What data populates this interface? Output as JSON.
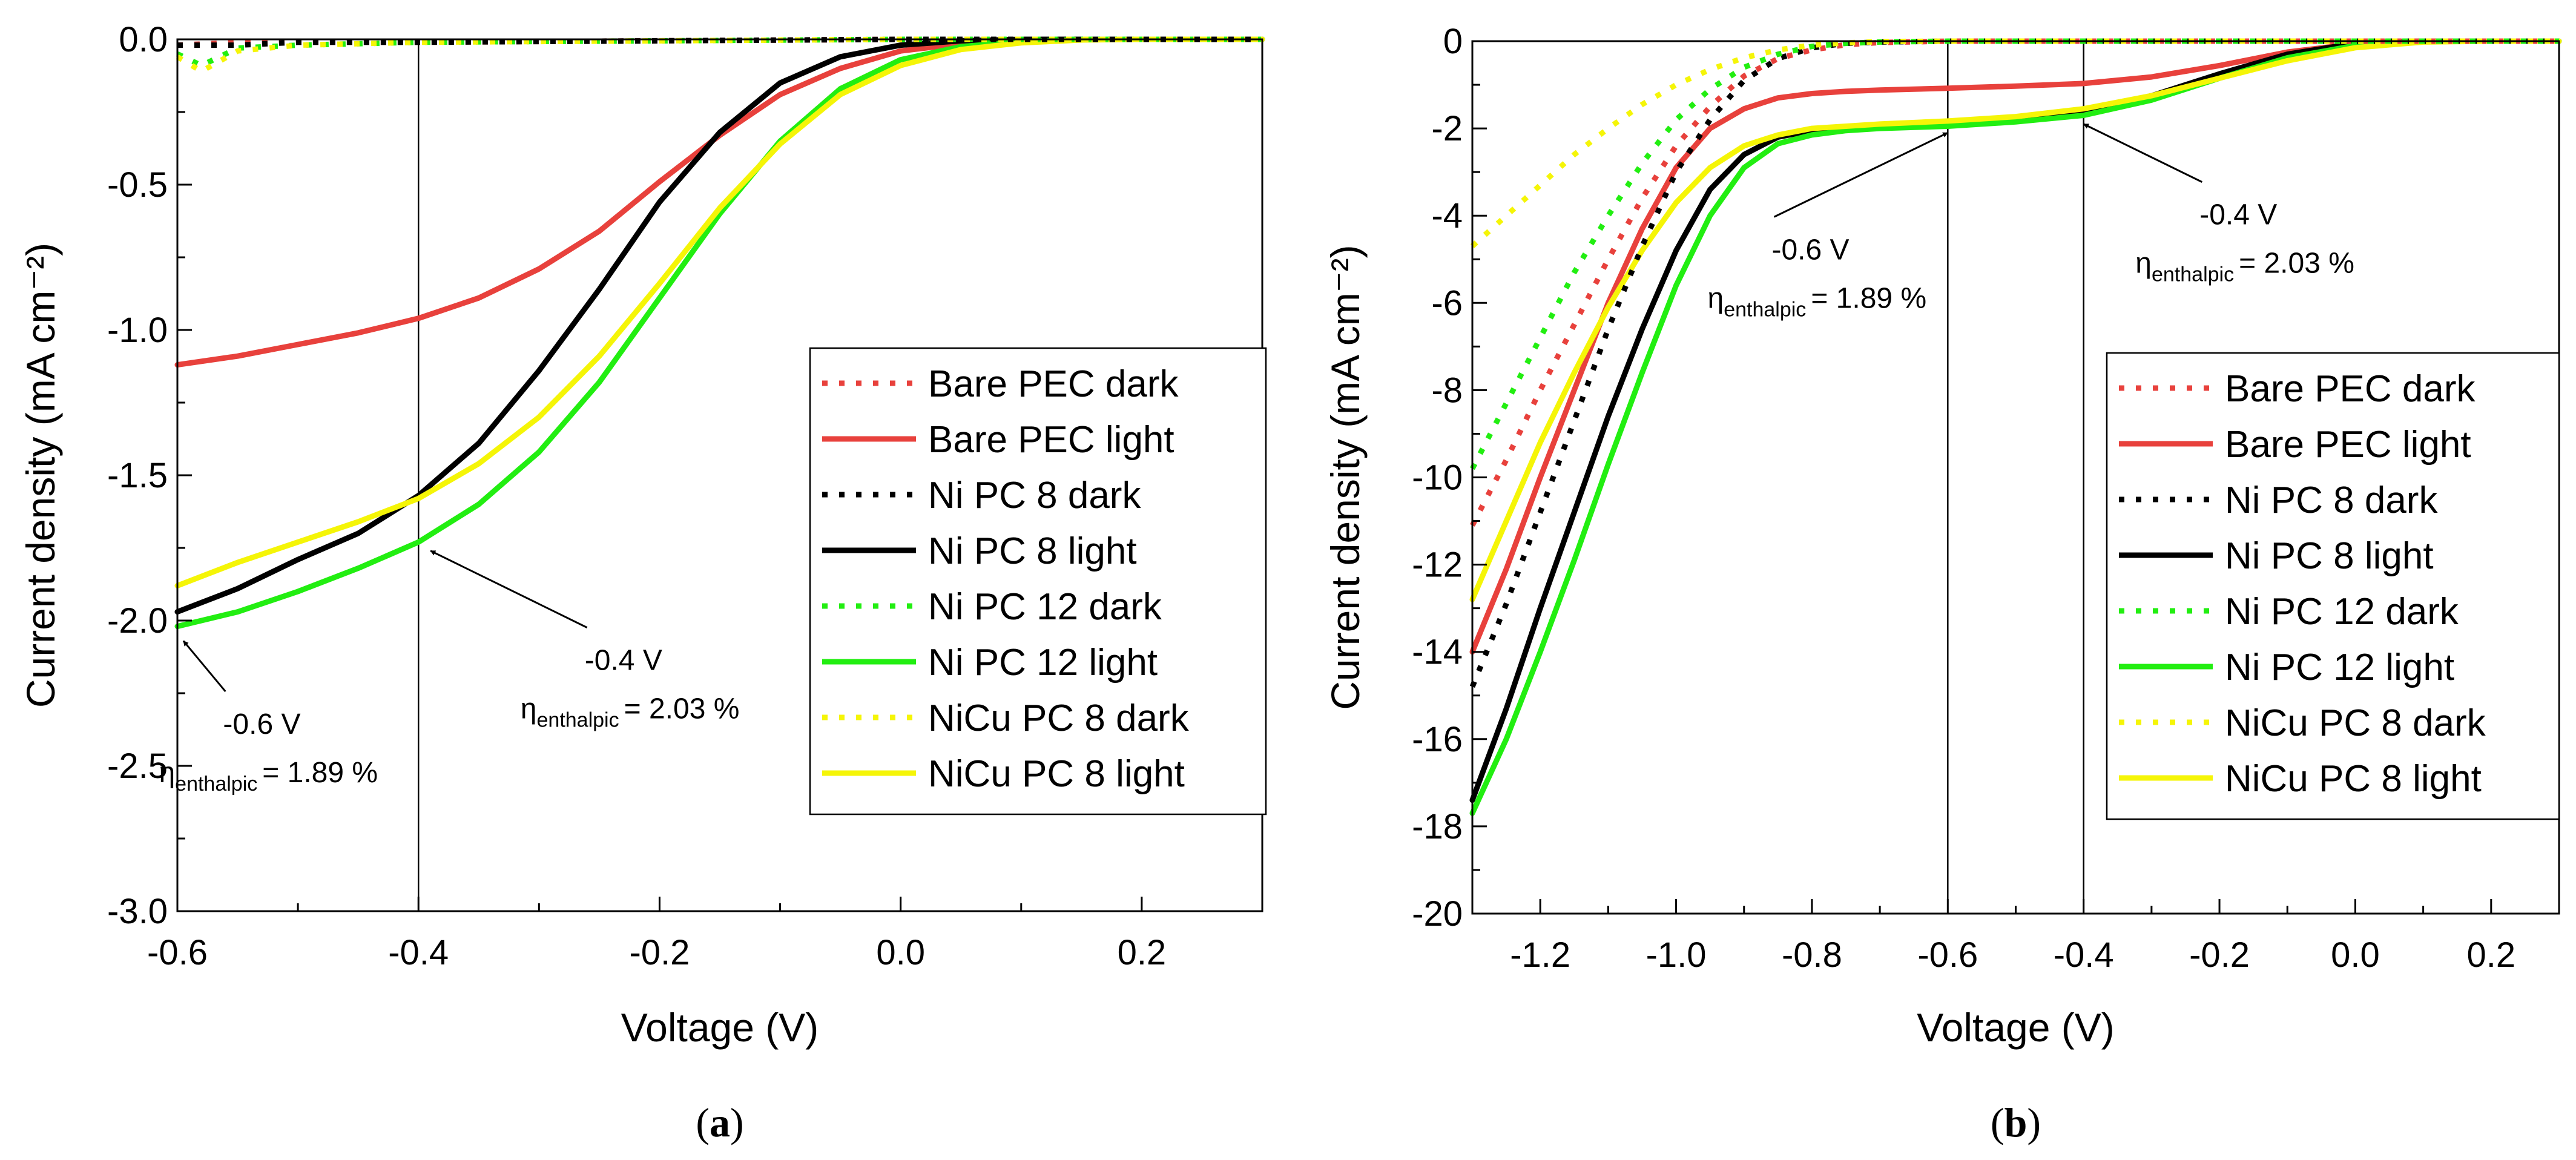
{
  "colors": {
    "red": "#e8413c",
    "black": "#000000",
    "green": "#22ee11",
    "yellow": "#f5f507",
    "axis": "#000000"
  },
  "chart_data": [
    {
      "id": "a",
      "type": "line",
      "panel_label": "a",
      "xlabel": "Voltage (V)",
      "ylabel": "Current density (mA cm⁻²)",
      "xlim": [
        -0.6,
        0.3
      ],
      "ylim": [
        -3.0,
        0.0
      ],
      "xticks": [
        -0.6,
        -0.4,
        -0.2,
        0.0,
        0.2
      ],
      "xtick_labels": [
        "-0.6",
        "-0.4",
        "-0.2",
        "0.0",
        "0.2"
      ],
      "yticks": [
        0.0,
        -0.5,
        -1.0,
        -1.5,
        -2.0,
        -2.5,
        -3.0
      ],
      "ytick_labels": [
        "0.0",
        "-0.5",
        "-1.0",
        "-1.5",
        "-2.0",
        "-2.5",
        "-3.0"
      ],
      "grid": false,
      "legend_position": "right",
      "vlines": [
        -0.4
      ],
      "series": [
        {
          "name": "Bare PEC dark",
          "color": "red",
          "style": "dotted",
          "x": [
            -0.6,
            -0.55,
            -0.5,
            -0.4,
            -0.2,
            0.0,
            0.2,
            0.3
          ],
          "y": [
            -0.02,
            -0.01,
            -0.01,
            -0.01,
            -0.005,
            0.0,
            0.0,
            0.0
          ]
        },
        {
          "name": "Bare PEC light",
          "color": "red",
          "style": "solid",
          "x": [
            -0.6,
            -0.55,
            -0.5,
            -0.45,
            -0.4,
            -0.35,
            -0.3,
            -0.25,
            -0.2,
            -0.15,
            -0.1,
            -0.05,
            0.0,
            0.05,
            0.1,
            0.15,
            0.2,
            0.3
          ],
          "y": [
            -1.12,
            -1.09,
            -1.05,
            -1.01,
            -0.96,
            -0.89,
            -0.79,
            -0.66,
            -0.49,
            -0.33,
            -0.19,
            -0.1,
            -0.04,
            -0.015,
            -0.005,
            0.0,
            0.0,
            0.0
          ]
        },
        {
          "name": "Ni PC 8 dark",
          "color": "black",
          "style": "dotted",
          "x": [
            -0.6,
            -0.55,
            -0.5,
            -0.4,
            -0.2,
            0.0,
            0.2,
            0.3
          ],
          "y": [
            -0.02,
            -0.02,
            -0.01,
            -0.01,
            -0.005,
            0.0,
            0.0,
            0.0
          ]
        },
        {
          "name": "Ni PC 8 light",
          "color": "black",
          "style": "solid",
          "x": [
            -0.6,
            -0.55,
            -0.5,
            -0.45,
            -0.4,
            -0.35,
            -0.3,
            -0.25,
            -0.2,
            -0.15,
            -0.1,
            -0.05,
            0.0,
            0.05,
            0.1,
            0.15,
            0.2,
            0.3
          ],
          "y": [
            -1.97,
            -1.89,
            -1.79,
            -1.7,
            -1.57,
            -1.39,
            -1.14,
            -0.86,
            -0.56,
            -0.32,
            -0.15,
            -0.06,
            -0.02,
            -0.005,
            0.0,
            0.0,
            0.0,
            0.0
          ]
        },
        {
          "name": "Ni PC 12 dark",
          "color": "green",
          "style": "dotted",
          "x": [
            -0.6,
            -0.58,
            -0.55,
            -0.5,
            -0.4,
            -0.2,
            0.0,
            0.2,
            0.3
          ],
          "y": [
            -0.05,
            -0.09,
            -0.03,
            -0.02,
            -0.01,
            -0.005,
            0.0,
            0.0,
            0.0
          ]
        },
        {
          "name": "Ni PC 12 light",
          "color": "green",
          "style": "solid",
          "x": [
            -0.6,
            -0.55,
            -0.5,
            -0.45,
            -0.4,
            -0.35,
            -0.3,
            -0.25,
            -0.2,
            -0.15,
            -0.1,
            -0.05,
            0.0,
            0.05,
            0.1,
            0.15,
            0.2,
            0.3
          ],
          "y": [
            -2.02,
            -1.97,
            -1.9,
            -1.82,
            -1.73,
            -1.6,
            -1.42,
            -1.18,
            -0.89,
            -0.6,
            -0.35,
            -0.17,
            -0.07,
            -0.025,
            -0.008,
            0.0,
            0.0,
            0.0
          ]
        },
        {
          "name": "NiCu PC 8 dark",
          "color": "yellow",
          "style": "dotted",
          "x": [
            -0.6,
            -0.58,
            -0.55,
            -0.5,
            -0.4,
            -0.2,
            0.0,
            0.2,
            0.3
          ],
          "y": [
            -0.06,
            -0.11,
            -0.04,
            -0.02,
            -0.01,
            -0.005,
            0.0,
            0.0,
            0.0
          ]
        },
        {
          "name": "NiCu PC 8 light",
          "color": "yellow",
          "style": "solid",
          "x": [
            -0.6,
            -0.55,
            -0.5,
            -0.45,
            -0.4,
            -0.35,
            -0.3,
            -0.25,
            -0.2,
            -0.15,
            -0.1,
            -0.05,
            0.0,
            0.05,
            0.1,
            0.15,
            0.2,
            0.3
          ],
          "y": [
            -1.88,
            -1.8,
            -1.73,
            -1.66,
            -1.58,
            -1.46,
            -1.3,
            -1.09,
            -0.84,
            -0.58,
            -0.36,
            -0.19,
            -0.09,
            -0.035,
            -0.012,
            -0.002,
            0.0,
            0.0
          ]
        }
      ],
      "annotations": [
        {
          "id": "a1",
          "voltage": "-0.4 V",
          "eta_symbol": "η",
          "eta_sub": "enthalpic",
          "eta_value": "= 2.03 %",
          "arrow_tip": [
            -0.39,
            -1.76
          ],
          "text_anchor": [
            -0.24,
            -2.17
          ]
        },
        {
          "id": "a2",
          "voltage": "-0.6 V",
          "eta_symbol": "η",
          "eta_sub": "enthalpic",
          "eta_value": "= 1.89 %",
          "arrow_tip": [
            -0.595,
            -2.07
          ],
          "text_anchor": [
            -0.54,
            -2.39
          ]
        }
      ]
    },
    {
      "id": "b",
      "type": "line",
      "panel_label": "b",
      "xlabel": "Voltage (V)",
      "ylabel": "Current density (mA cm⁻²)",
      "xlim": [
        -1.3,
        0.3
      ],
      "ylim": [
        -20,
        0
      ],
      "xticks": [
        -1.2,
        -1.0,
        -0.8,
        -0.6,
        -0.4,
        -0.2,
        0.0,
        0.2
      ],
      "xtick_labels": [
        "-1.2",
        "-1.0",
        "-0.8",
        "-0.6",
        "-0.4",
        "-0.2",
        "0.0",
        "0.2"
      ],
      "yticks": [
        0,
        -2,
        -4,
        -6,
        -8,
        -10,
        -12,
        -14,
        -16,
        -18,
        -20
      ],
      "ytick_labels": [
        "0",
        "-2",
        "-4",
        "-6",
        "-8",
        "-10",
        "-12",
        "-14",
        "-16",
        "-18",
        "-20"
      ],
      "grid": false,
      "legend_position": "right",
      "vlines": [
        -0.6,
        -0.4
      ],
      "series": [
        {
          "name": "Bare PEC dark",
          "color": "red",
          "style": "dotted",
          "x": [
            -1.3,
            -1.25,
            -1.2,
            -1.15,
            -1.1,
            -1.05,
            -1.0,
            -0.95,
            -0.9,
            -0.85,
            -0.8,
            -0.75,
            -0.7,
            -0.6,
            -0.4,
            0.0,
            0.3
          ],
          "y": [
            -11.1,
            -9.6,
            -8.0,
            -6.5,
            -5.0,
            -3.6,
            -2.4,
            -1.5,
            -0.8,
            -0.4,
            -0.2,
            -0.08,
            -0.03,
            0.0,
            0.0,
            0.0,
            0.0
          ]
        },
        {
          "name": "Bare PEC light",
          "color": "red",
          "style": "solid",
          "x": [
            -1.3,
            -1.25,
            -1.2,
            -1.15,
            -1.1,
            -1.05,
            -1.0,
            -0.95,
            -0.9,
            -0.85,
            -0.8,
            -0.75,
            -0.7,
            -0.6,
            -0.5,
            -0.4,
            -0.3,
            -0.2,
            -0.1,
            0.0,
            0.1,
            0.2,
            0.3
          ],
          "y": [
            -14.0,
            -12.1,
            -10.0,
            -8.0,
            -6.0,
            -4.3,
            -2.9,
            -2.0,
            -1.55,
            -1.3,
            -1.2,
            -1.15,
            -1.12,
            -1.08,
            -1.03,
            -0.97,
            -0.82,
            -0.56,
            -0.25,
            -0.06,
            0.0,
            0.0,
            0.0
          ]
        },
        {
          "name": "Ni PC 8 dark",
          "color": "black",
          "style": "dotted",
          "x": [
            -1.3,
            -1.25,
            -1.2,
            -1.15,
            -1.1,
            -1.05,
            -1.0,
            -0.95,
            -0.9,
            -0.85,
            -0.8,
            -0.75,
            -0.7,
            -0.6,
            -0.4,
            0.0,
            0.3
          ],
          "y": [
            -14.8,
            -12.9,
            -10.8,
            -8.7,
            -6.6,
            -4.7,
            -3.0,
            -1.8,
            -0.9,
            -0.4,
            -0.15,
            -0.05,
            -0.02,
            0.0,
            0.0,
            0.0,
            0.0
          ]
        },
        {
          "name": "Ni PC 8 light",
          "color": "black",
          "style": "solid",
          "x": [
            -1.3,
            -1.25,
            -1.2,
            -1.15,
            -1.1,
            -1.05,
            -1.0,
            -0.95,
            -0.9,
            -0.85,
            -0.8,
            -0.75,
            -0.7,
            -0.6,
            -0.5,
            -0.4,
            -0.3,
            -0.2,
            -0.1,
            0.0,
            0.1,
            0.2,
            0.3
          ],
          "y": [
            -17.4,
            -15.3,
            -13.0,
            -10.8,
            -8.6,
            -6.6,
            -4.8,
            -3.4,
            -2.6,
            -2.2,
            -2.05,
            -1.97,
            -1.93,
            -1.87,
            -1.78,
            -1.6,
            -1.25,
            -0.75,
            -0.3,
            -0.05,
            0.0,
            0.0,
            0.0
          ]
        },
        {
          "name": "Ni PC 12 dark",
          "color": "green",
          "style": "dotted",
          "x": [
            -1.3,
            -1.25,
            -1.2,
            -1.15,
            -1.1,
            -1.05,
            -1.0,
            -0.95,
            -0.9,
            -0.85,
            -0.8,
            -0.75,
            -0.7,
            -0.6,
            -0.4,
            0.0,
            0.3
          ],
          "y": [
            -9.8,
            -8.3,
            -6.8,
            -5.3,
            -4.0,
            -2.8,
            -1.8,
            -1.1,
            -0.6,
            -0.3,
            -0.12,
            -0.05,
            -0.02,
            0.0,
            0.0,
            0.0,
            0.0
          ]
        },
        {
          "name": "Ni PC 12 light",
          "color": "green",
          "style": "solid",
          "x": [
            -1.3,
            -1.25,
            -1.2,
            -1.15,
            -1.1,
            -1.05,
            -1.0,
            -0.95,
            -0.9,
            -0.85,
            -0.8,
            -0.75,
            -0.7,
            -0.6,
            -0.5,
            -0.4,
            -0.3,
            -0.2,
            -0.1,
            0.0,
            0.1,
            0.2,
            0.3
          ],
          "y": [
            -17.7,
            -16.0,
            -14.0,
            -11.9,
            -9.7,
            -7.6,
            -5.6,
            -4.0,
            -2.9,
            -2.35,
            -2.15,
            -2.05,
            -2.0,
            -1.95,
            -1.85,
            -1.7,
            -1.35,
            -0.85,
            -0.38,
            -0.1,
            0.0,
            0.0,
            0.0
          ]
        },
        {
          "name": "NiCu PC 8 dark",
          "color": "yellow",
          "style": "dotted",
          "x": [
            -1.3,
            -1.25,
            -1.2,
            -1.15,
            -1.1,
            -1.05,
            -1.0,
            -0.95,
            -0.9,
            -0.85,
            -0.8,
            -0.75,
            -0.7,
            -0.6,
            -0.4,
            0.0,
            0.3
          ],
          "y": [
            -4.7,
            -4.0,
            -3.3,
            -2.6,
            -2.0,
            -1.45,
            -1.0,
            -0.65,
            -0.38,
            -0.2,
            -0.09,
            -0.04,
            -0.01,
            0.0,
            0.0,
            0.0,
            0.0
          ]
        },
        {
          "name": "NiCu PC 8 light",
          "color": "yellow",
          "style": "solid",
          "x": [
            -1.3,
            -1.25,
            -1.2,
            -1.15,
            -1.1,
            -1.05,
            -1.0,
            -0.95,
            -0.9,
            -0.85,
            -0.8,
            -0.75,
            -0.7,
            -0.6,
            -0.5,
            -0.4,
            -0.3,
            -0.2,
            -0.1,
            0.0,
            0.1,
            0.2,
            0.3
          ],
          "y": [
            -12.8,
            -11.0,
            -9.2,
            -7.6,
            -6.1,
            -4.8,
            -3.7,
            -2.9,
            -2.4,
            -2.15,
            -2.0,
            -1.95,
            -1.9,
            -1.83,
            -1.73,
            -1.55,
            -1.25,
            -0.85,
            -0.45,
            -0.15,
            -0.02,
            0.0,
            0.0
          ]
        }
      ],
      "annotations": [
        {
          "id": "b1",
          "voltage": "-0.6 V",
          "eta_symbol": "η",
          "eta_sub": "enthalpic",
          "eta_value": "= 1.89 %",
          "arrow_tip": [
            -0.6,
            -2.1
          ],
          "text_anchor": [
            -0.82,
            -5.0
          ]
        },
        {
          "id": "b2",
          "voltage": "-0.4 V",
          "eta_symbol": "η",
          "eta_sub": "enthalpic",
          "eta_value": "= 2.03 %",
          "arrow_tip": [
            -0.4,
            -1.9
          ],
          "text_anchor": [
            -0.19,
            -4.2
          ]
        }
      ]
    }
  ]
}
